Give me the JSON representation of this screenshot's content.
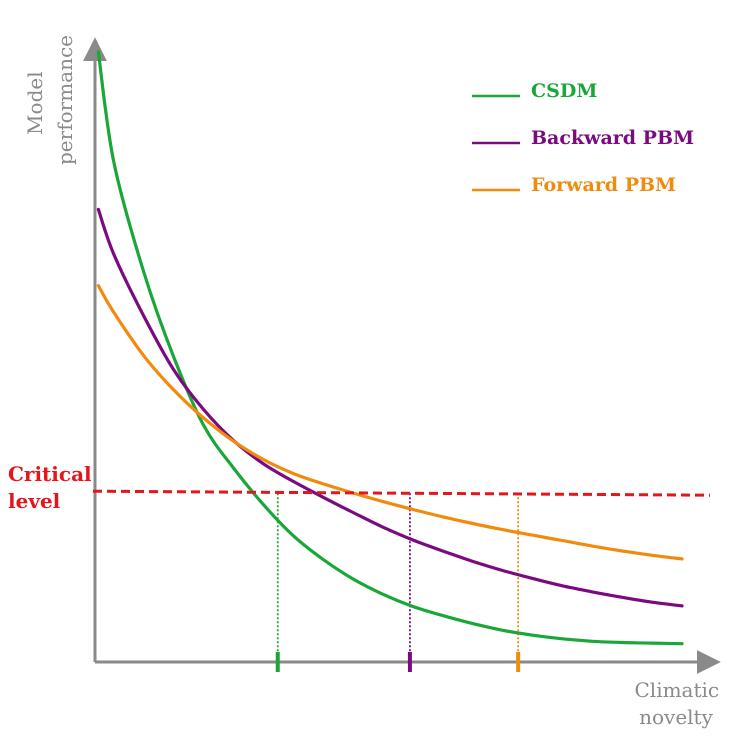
{
  "chart_data": {
    "type": "line",
    "title": "",
    "xlabel": "Climatic novelty",
    "ylabel": "Model performance",
    "xlim": [
      0,
      10
    ],
    "ylim": [
      0,
      10
    ],
    "grid": false,
    "legend_position": "top-right",
    "axis_color": "#8a8a8a",
    "critical_level": {
      "label": "Critical level",
      "value": 2.8,
      "color": "#e3161b"
    },
    "series": [
      {
        "name": "CSDM",
        "color": "#1aa639",
        "x": [
          0.24,
          0.5,
          1.0,
          1.5,
          2.0,
          2.5,
          3.0,
          3.5,
          4.0,
          4.5,
          5.0,
          5.5,
          6.0,
          6.5,
          7.0,
          7.5,
          8.0,
          8.5,
          9.0,
          9.5,
          10.0
        ],
        "y": [
          10.0,
          8.19,
          6.39,
          5.0,
          3.88,
          3.18,
          2.58,
          2.07,
          1.68,
          1.36,
          1.11,
          0.91,
          0.76,
          0.63,
          0.52,
          0.44,
          0.38,
          0.34,
          0.32,
          0.31,
          0.3
        ],
        "critical_x": 3.24
      },
      {
        "name": "Backward PBM",
        "color": "#7b0a81",
        "x": [
          0.24,
          0.5,
          1.0,
          1.5,
          2.0,
          2.5,
          3.0,
          3.5,
          4.0,
          4.5,
          5.0,
          5.5,
          6.0,
          6.5,
          7.0,
          7.5,
          8.0,
          8.5,
          9.0,
          9.5,
          10.0
        ],
        "y": [
          7.42,
          6.68,
          5.67,
          4.79,
          4.14,
          3.63,
          3.25,
          2.96,
          2.7,
          2.45,
          2.21,
          2.0,
          1.82,
          1.65,
          1.5,
          1.37,
          1.25,
          1.15,
          1.06,
          0.98,
          0.92
        ],
        "critical_x": 5.45
      },
      {
        "name": "Forward PBM",
        "color": "#f28a0d",
        "x": [
          0.24,
          0.5,
          1.0,
          1.5,
          2.0,
          2.5,
          3.0,
          3.5,
          4.0,
          4.5,
          5.0,
          5.5,
          6.0,
          6.5,
          7.0,
          7.5,
          8.0,
          8.5,
          9.0,
          9.5,
          10.0
        ],
        "y": [
          6.17,
          5.73,
          5.02,
          4.46,
          4.0,
          3.62,
          3.32,
          3.09,
          2.92,
          2.77,
          2.63,
          2.5,
          2.38,
          2.27,
          2.17,
          2.08,
          1.99,
          1.9,
          1.82,
          1.75,
          1.69
        ],
        "critical_x": 7.26
      }
    ]
  }
}
